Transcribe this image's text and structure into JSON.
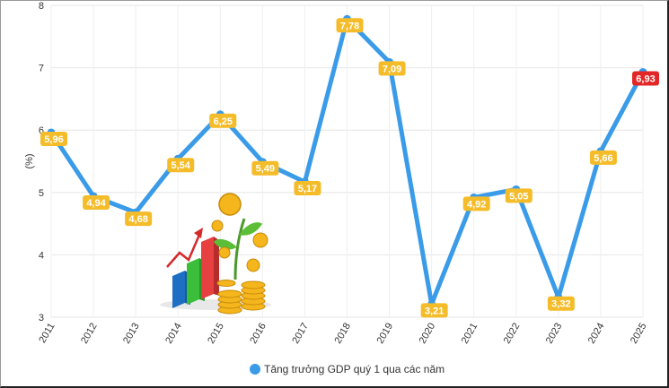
{
  "chart_data": {
    "type": "line",
    "title": "",
    "xlabel": "",
    "ylabel": "(%)",
    "ylim": [
      3,
      8
    ],
    "yticks": [
      3,
      4,
      5,
      6,
      7,
      8
    ],
    "grid": true,
    "legend_position": "bottom-center",
    "categories": [
      "2011",
      "2012",
      "2013",
      "2014",
      "2015",
      "2016",
      "2017",
      "2018",
      "2019",
      "2020",
      "2021",
      "2022",
      "2023",
      "2024",
      "2025"
    ],
    "series": [
      {
        "name": "Tăng trưởng GDP quý 1 qua các năm",
        "color": "#3a9be8",
        "values": [
          5.96,
          4.94,
          4.68,
          5.54,
          6.25,
          5.49,
          5.17,
          7.78,
          7.09,
          3.21,
          4.92,
          5.05,
          3.32,
          5.66,
          6.93
        ],
        "labels": [
          "5,96",
          "4,94",
          "4,68",
          "5,54",
          "6,25",
          "5,49",
          "5,17",
          "7,78",
          "7,09",
          "3,21",
          "4,92",
          "5,05",
          "3,32",
          "5,66",
          "6,93"
        ]
      }
    ],
    "label_colors": {
      "default": "#f5bc2a",
      "highlight": "#e32626"
    },
    "highlight_index": 14,
    "illustration": "growth-bar-chart-with-coins-icon"
  }
}
